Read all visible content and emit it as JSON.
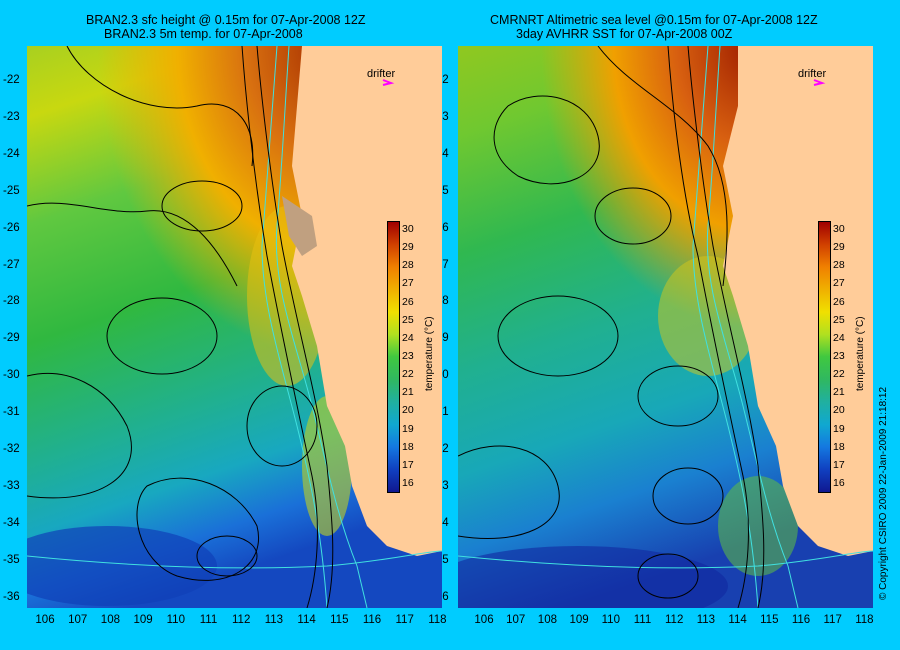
{
  "left": {
    "title_line1": "BRAN2.3 sfc height @ 0.15m for 07-Apr-2008 12Z",
    "title_line2": "BRAN2.3 5m temp. for 07-Apr-2008"
  },
  "right": {
    "title_line1": "CMRNRT Altimetric sea level  @0.15m  for 07-Apr-2008 12Z",
    "title_line2": "3day AVHRR SST for 07-Apr-2008 00Z"
  },
  "drifter_label": "drifter",
  "colorbar": {
    "label": "temperature (°C)",
    "ticks": [
      "30",
      "29",
      "28",
      "27",
      "26",
      "25",
      "24",
      "23",
      "22",
      "21",
      "20",
      "19",
      "18",
      "17",
      "16"
    ]
  },
  "lon_ticks": [
    "106",
    "107",
    "108",
    "109",
    "110",
    "111",
    "112",
    "113",
    "114",
    "115",
    "116",
    "117",
    "118"
  ],
  "lat_ticks": [
    "-22",
    "-23",
    "-24",
    "-25",
    "-26",
    "-27",
    "-28",
    "-29",
    "-30",
    "-31",
    "-32",
    "-33",
    "-34",
    "-35",
    "-36"
  ],
  "copyright": "© Copyright CSIRO 2009   22-Jan-2009 21:18:12",
  "colors": {
    "background": "#00ccff",
    "land": "#ffcc99",
    "hot": "#b03000",
    "warm": "#f0a000",
    "mid": "#3cc83c",
    "cool": "#20b4b4",
    "cold": "#1050c8",
    "drifter": "#ff00ff",
    "contour": "#000000",
    "isobath": "#40e0e0"
  }
}
